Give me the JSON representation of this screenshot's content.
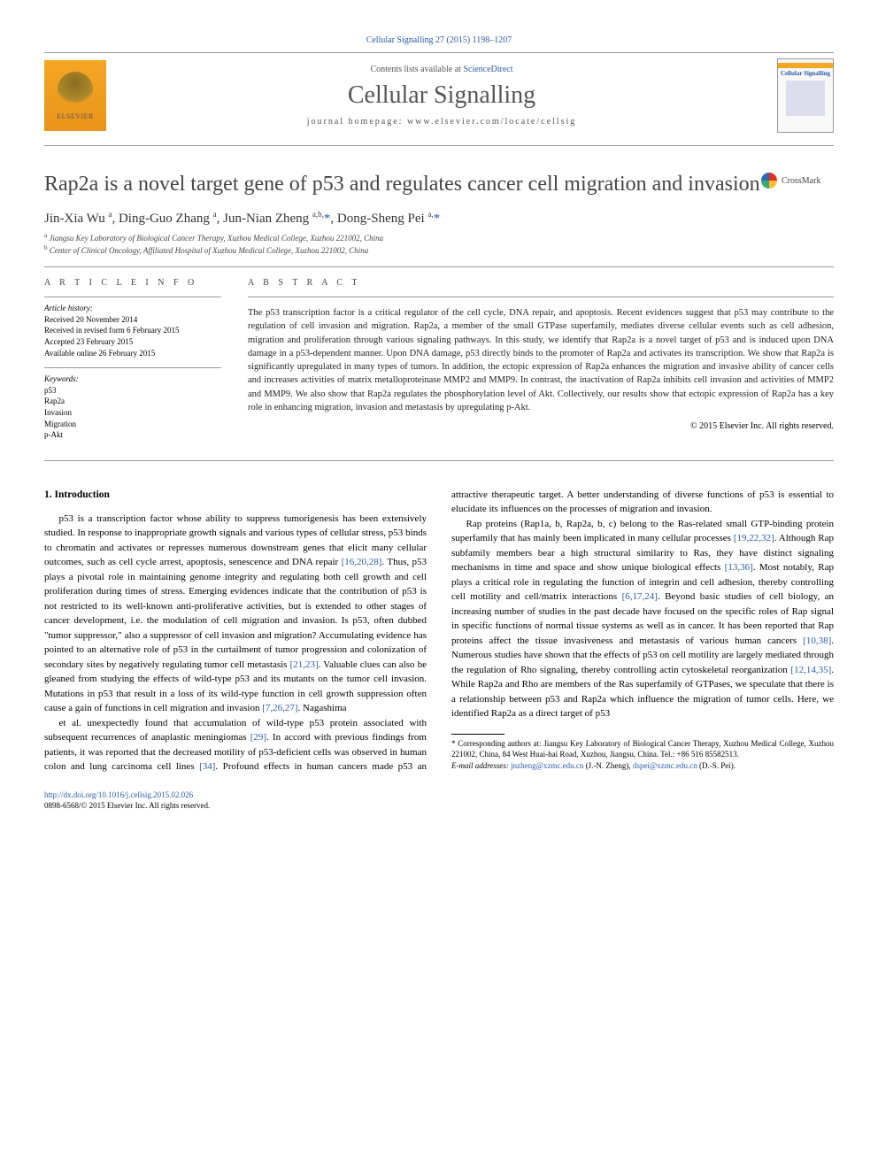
{
  "journal_ref": "Cellular Signalling 27 (2015) 1198–1207",
  "header": {
    "contents_prefix": "Contents lists available at ",
    "contents_link": "ScienceDirect",
    "journal_title": "Cellular Signalling",
    "homepage_prefix": "journal homepage: ",
    "homepage_url": "www.elsevier.com/locate/cellsig",
    "publisher": "ELSEVIER",
    "cover_title": "Cellular Signalling"
  },
  "article": {
    "title": "Rap2a is a novel target gene of p53 and regulates cancer cell migration and invasion",
    "crossmark": "CrossMark",
    "authors_html": "Jin-Xia Wu <sup>a</sup>, Ding-Guo Zhang <sup>a</sup>, Jun-Nian Zheng <sup>a,b,</sup><a href='#'>*</a>, Dong-Sheng Pei <sup>a,</sup><a href='#'>*</a>",
    "affiliations": [
      {
        "sup": "a",
        "text": "Jiangsu Key Laboratory of Biological Cancer Therapy, Xuzhou Medical College, Xuzhou 221002, China"
      },
      {
        "sup": "b",
        "text": "Center of Clinical Oncology, Affiliated Hospital of Xuzhou Medical College, Xuzhou 221002, China"
      }
    ]
  },
  "info": {
    "heading": "A R T I C L E   I N F O",
    "history_label": "Article history:",
    "history": [
      "Received 20 November 2014",
      "Received in revised form 6 February 2015",
      "Accepted 23 February 2015",
      "Available online 26 February 2015"
    ],
    "keywords_label": "Keywords:",
    "keywords": [
      "p53",
      "Rap2a",
      "Invasion",
      "Migration",
      "p-Akt"
    ]
  },
  "abstract": {
    "heading": "A B S T R A C T",
    "text": "The p53 transcription factor is a critical regulator of the cell cycle, DNA repair, and apoptosis. Recent evidences suggest that p53 may contribute to the regulation of cell invasion and migration. Rap2a, a member of the small GTPase superfamily, mediates diverse cellular events such as cell adhesion, migration and proliferation through various signaling pathways. In this study, we identify that Rap2a is a novel target of p53 and is induced upon DNA damage in a p53-dependent manner. Upon DNA damage, p53 directly binds to the promoter of Rap2a and activates its transcription. We show that Rap2a is significantly upregulated in many types of tumors. In addition, the ectopic expression of Rap2a enhances the migration and invasive ability of cancer cells and increases activities of matrix metalloproteinase MMP2 and MMP9. In contrast, the inactivation of Rap2a inhibits cell invasion and activities of MMP2 and MMP9. We also show that Rap2a regulates the phosphorylation level of Akt. Collectively, our results show that ectopic expression of Rap2a has a key role in enhancing migration, invasion and metastasis by upregulating p-Akt.",
    "copyright": "© 2015 Elsevier Inc. All rights reserved."
  },
  "body": {
    "intro_heading": "1. Introduction",
    "col1_p1": "p53 is a transcription factor whose ability to suppress tumorigenesis has been extensively studied. In response to inappropriate growth signals and various types of cellular stress, p53 binds to chromatin and activates or represses numerous downstream genes that elicit many cellular outcomes, such as cell cycle arrest, apoptosis, senescence and DNA repair [16,20,28]. Thus, p53 plays a pivotal role in maintaining genome integrity and regulating both cell growth and cell proliferation during times of stress. Emerging evidences indicate that the contribution of p53 is not restricted to its well-known anti-proliferative activities, but is extended to other stages of cancer development, i.e. the modulation of cell migration and invasion. Is p53, often dubbed \"tumor suppressor,\" also a suppressor of cell invasion and migration? Accumulating evidence has pointed to an alternative role of p53 in the curtailment of tumor progression and colonization of secondary sites by negatively regulating tumor cell metastasis [21,23]. Valuable clues can also be gleaned from studying the effects of wild-type p53 and its mutants on the tumor cell invasion. Mutations in p53 that result in a loss of its wild-type function in cell growth suppression often cause a gain of functions in cell migration and invasion [7,26,27]. Nagashima",
    "col2_p1": "et al. unexpectedly found that accumulation of wild-type p53 protein associated with subsequent recurrences of anaplastic meningiomas [29]. In accord with previous findings from patients, it was reported that the decreased motility of p53-deficient cells was observed in human colon and lung carcinoma cell lines [34]. Profound effects in human cancers made p53 an attractive therapeutic target. A better understanding of diverse functions of p53 is essential to elucidate its influences on the processes of migration and invasion.",
    "col2_p2": "Rap proteins (Rap1a, b, Rap2a, b, c) belong to the Ras-related small GTP-binding protein superfamily that has mainly been implicated in many cellular processes [19,22,32]. Although Rap subfamily members bear a high structural similarity to Ras, they have distinct signaling mechanisms in time and space and show unique biological effects [13,36]. Most notably, Rap plays a critical role in regulating the function of integrin and cell adhesion, thereby controlling cell motility and cell/matrix interactions [6,17,24]. Beyond basic studies of cell biology, an increasing number of studies in the past decade have focused on the specific roles of Rap signal in specific functions of normal tissue systems as well as in cancer. It has been reported that Rap proteins affect the tissue invasiveness and metastasis of various human cancers [10,38]. Numerous studies have shown that the effects of p53 on cell motility are largely mediated through the regulation of Rho signaling, thereby controlling actin cytoskeletal reorganization [12,14,35]. While Rap2a and Rho are members of the Ras superfamily of GTPases, we speculate that there is a relationship between p53 and Rap2a which influence the migration of tumor cells. Here, we identified Rap2a as a direct target of p53"
  },
  "footnotes": {
    "corr": "* Corresponding authors at: Jiangsu Key Laboratory of Biological Cancer Therapy, Xuzhou Medical College, Xuzhou 221002, China, 84 West Huai-hai Road, Xuzhou, Jiangsu, China. Tel.: +86 516 85582513.",
    "email_label": "E-mail addresses: ",
    "email1": "jnzheng@xzmc.edu.cn",
    "email1_name": " (J.-N. Zheng), ",
    "email2": "dspei@xzmc.edu.cn",
    "email2_name": " (D.-S. Pei)."
  },
  "footer": {
    "doi": "http://dx.doi.org/10.1016/j.cellsig.2015.02.026",
    "issn": "0898-6568/© 2015 Elsevier Inc. All rights reserved."
  },
  "colors": {
    "link": "#2a5caa",
    "text": "#000000",
    "heading_gray": "#444444",
    "orange": "#f5a623"
  }
}
